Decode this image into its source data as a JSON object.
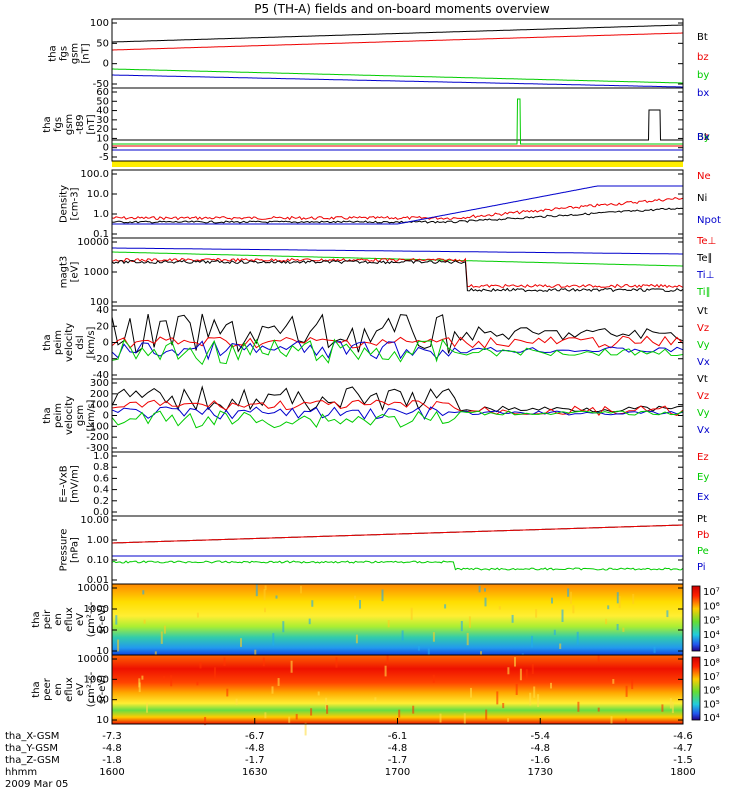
{
  "title": "P5 (TH-A) fields and on-board moments overview",
  "colors": {
    "black": "#000000",
    "red": "#ee0000",
    "green": "#00cc00",
    "blue": "#0000cc",
    "yellow": "#ffee00"
  },
  "chart_data": [
    {
      "type": "line",
      "id": "p1",
      "ylabel": [
        "tha",
        "fgs",
        "gsm",
        "[nT]"
      ],
      "yticks": [
        "100",
        "50",
        "0",
        "-50"
      ],
      "ylim": [
        -60,
        105
      ],
      "legend": [
        {
          "name": "Bt",
          "color": "black"
        },
        {
          "name": "bz",
          "color": "red"
        },
        {
          "name": "by",
          "color": "green"
        },
        {
          "name": "bx",
          "color": "blue"
        }
      ]
    },
    {
      "type": "line",
      "id": "p2",
      "ylabel": [
        "tha",
        "fgs",
        "gsm",
        "-t89",
        "[nT]"
      ],
      "yticks": [
        "60",
        "50",
        "40",
        "30",
        "20",
        "10",
        "0",
        "-5"
      ],
      "ylim": [
        -5,
        60
      ],
      "legend": [
        {
          "name": "Bt",
          "color": "black"
        },
        {
          "name": "Bz",
          "color": "red"
        },
        {
          "name": "By",
          "color": "green"
        },
        {
          "name": "Bx",
          "color": "blue"
        }
      ]
    },
    {
      "type": "line",
      "id": "p3",
      "ylabel": [
        "Density",
        "[cm-3]"
      ],
      "yticks": [
        "100.0",
        "10.0",
        "1.0",
        "0.1"
      ],
      "scale": "log",
      "ylim": [
        0.1,
        100
      ],
      "legend": [
        {
          "name": "Ne",
          "color": "red"
        },
        {
          "name": "Ni",
          "color": "black"
        },
        {
          "name": "Npot",
          "color": "blue"
        }
      ]
    },
    {
      "type": "line",
      "id": "p4",
      "ylabel": [
        "magt3",
        "[eV]"
      ],
      "yticks": [
        "10000",
        "1000",
        "100"
      ],
      "scale": "log",
      "ylim": [
        40,
        10000
      ],
      "legend": [
        {
          "name": "Te⊥",
          "color": "red"
        },
        {
          "name": "Te∥",
          "color": "black"
        },
        {
          "name": "Ti⊥",
          "color": "blue"
        },
        {
          "name": "Ti∥",
          "color": "green"
        }
      ]
    },
    {
      "type": "line",
      "id": "p5",
      "ylabel": [
        "tha",
        "peim",
        "velocity",
        "dsl",
        "[km/s]"
      ],
      "yticks": [
        "40",
        "20",
        "0",
        "-20",
        "-40"
      ],
      "ylim": [
        -45,
        40
      ],
      "legend": [
        {
          "name": "Vt",
          "color": "black"
        },
        {
          "name": "Vz",
          "color": "red"
        },
        {
          "name": "Vy",
          "color": "green"
        },
        {
          "name": "Vx",
          "color": "blue"
        }
      ]
    },
    {
      "type": "line",
      "id": "p6",
      "ylabel": [
        "tha",
        "peim",
        "velocity",
        "gsm",
        "[km/s]"
      ],
      "yticks": [
        "300",
        "200",
        "100",
        "0",
        "-100",
        "-200",
        "-300"
      ],
      "ylim": [
        -300,
        300
      ],
      "legend": [
        {
          "name": "Vt",
          "color": "black"
        },
        {
          "name": "Vz",
          "color": "red"
        },
        {
          "name": "Vy",
          "color": "green"
        },
        {
          "name": "Vx",
          "color": "blue"
        }
      ]
    },
    {
      "type": "line",
      "id": "p7",
      "ylabel": [
        "E=-VxB",
        "[mV/m]"
      ],
      "yticks": [
        "1.0",
        "0.8",
        "0.6",
        "0.4",
        "0.2",
        "0.0"
      ],
      "ylim": [
        0,
        1
      ],
      "legend": [
        {
          "name": "Ez",
          "color": "red"
        },
        {
          "name": "Ey",
          "color": "green"
        },
        {
          "name": "Ex",
          "color": "blue"
        }
      ]
    },
    {
      "type": "line",
      "id": "p8",
      "ylabel": [
        "Pressure",
        "[nPa]"
      ],
      "yticks": [
        "10.00",
        "1.00",
        "0.10",
        "0.01"
      ],
      "scale": "log",
      "ylim": [
        0.01,
        10
      ],
      "legend": [
        {
          "name": "Pt",
          "color": "black"
        },
        {
          "name": "Pb",
          "color": "red"
        },
        {
          "name": "Pe",
          "color": "green"
        },
        {
          "name": "Pi",
          "color": "blue"
        }
      ]
    },
    {
      "type": "heatmap",
      "id": "p9",
      "ylabel": [
        "tha",
        "peir",
        "en",
        "eflux",
        "eV",
        "(cm²-s-",
        "sr-eV)"
      ],
      "yticks": [
        "10000",
        "1000",
        "100",
        "10"
      ],
      "scale": "log",
      "colorbar": [
        "10⁷",
        "10⁶",
        "10⁵",
        "10⁴",
        "10³"
      ]
    },
    {
      "type": "heatmap",
      "id": "p10",
      "ylabel": [
        "tha",
        "peer",
        "en",
        "eflux",
        "eV",
        "(cm²-s-",
        "sr-eV)"
      ],
      "yticks": [
        "10000",
        "1000",
        "100",
        "10"
      ],
      "scale": "log",
      "colorbar": [
        "10⁸",
        "10⁷",
        "10⁶",
        "10⁵",
        "10⁴"
      ]
    }
  ],
  "xaxis": {
    "rows": [
      {
        "label": "tha_X-GSM",
        "values": [
          "-7.3",
          "-6.7",
          "-6.1",
          "-5.4",
          "-4.6"
        ]
      },
      {
        "label": "tha_Y-GSM",
        "values": [
          "-4.8",
          "-4.8",
          "-4.8",
          "-4.8",
          "-4.7"
        ]
      },
      {
        "label": "tha_Z-GSM",
        "values": [
          "-1.8",
          "-1.7",
          "-1.7",
          "-1.6",
          "-1.5"
        ]
      },
      {
        "label": "hhmm",
        "values": [
          "1600",
          "1630",
          "1700",
          "1730",
          "1800"
        ]
      }
    ],
    "date": "2009 Mar 05"
  }
}
